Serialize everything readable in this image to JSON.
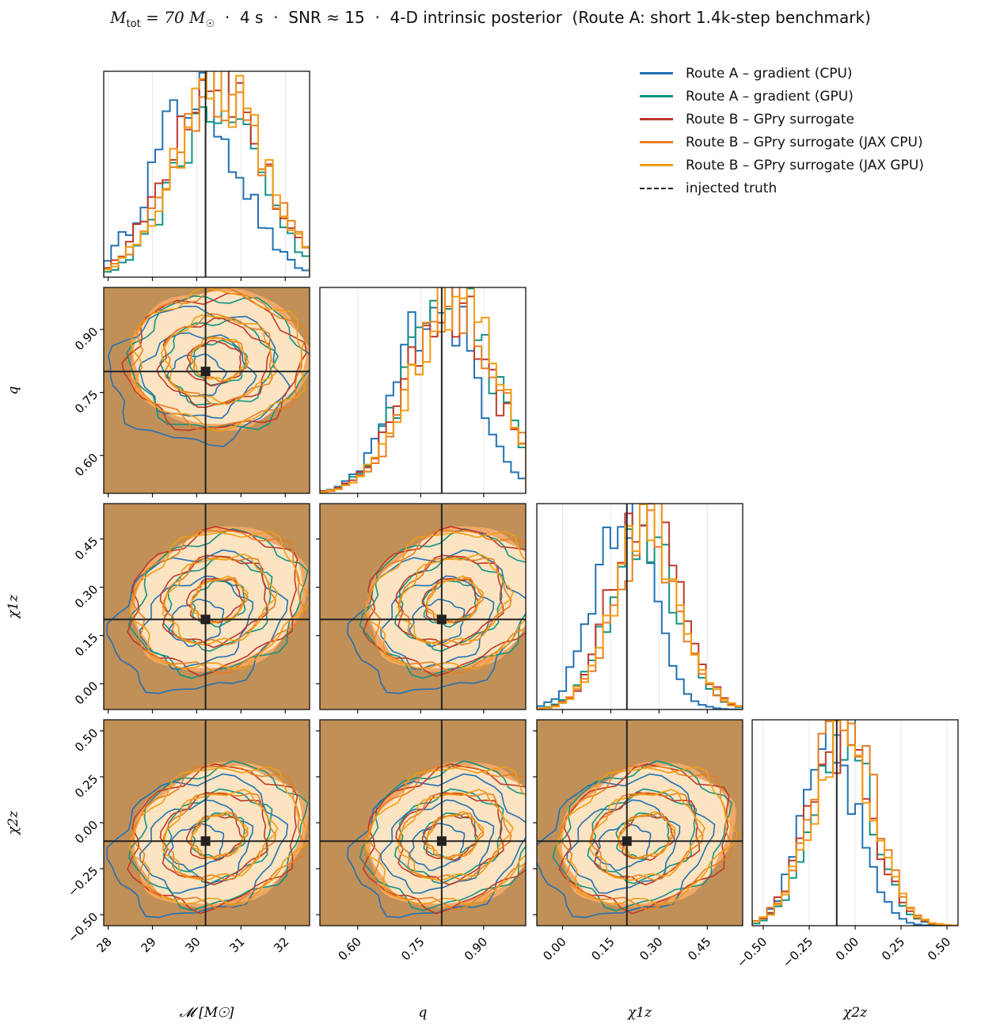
{
  "title": {
    "mass_symbol": "M",
    "mass_sub": "tot",
    "mass_value": " = 70 M",
    "mass_unit_sub": "☉",
    "rest": "  ·  4 s  ·  SNR ≈ 15  ·  4-D intrinsic posterior  (Route A: short 1.4k-step benchmark)"
  },
  "legend": [
    {
      "label": "Route A – gradient (CPU)",
      "color": "#2271b3"
    },
    {
      "label": "Route A – gradient (GPU)",
      "color": "#129283"
    },
    {
      "label": "Route B – GPry surrogate",
      "color": "#c0392b"
    },
    {
      "label": "Route B – GPry surrogate (JAX CPU)",
      "color": "#e67e22"
    },
    {
      "label": "Route B – GPry surrogate (JAX GPU)",
      "color": "#f39c12"
    },
    {
      "label": "injected truth",
      "color": "#222222",
      "dashed": true
    }
  ],
  "colors": {
    "filled_background": "#c09058",
    "filled_region": "#fce3c1",
    "filled_outer": "#f0a868",
    "truth_line": "#222222"
  },
  "chart_data": {
    "type": "corner",
    "params": [
      {
        "name": "chirp_mass",
        "label": "𝓜 [M☉]",
        "range": [
          27.9,
          32.55
        ],
        "ticks": [
          28,
          29,
          30,
          31,
          32
        ],
        "tick_labels": [
          "28",
          "29",
          "30",
          "31",
          "32"
        ],
        "truth": 30.2
      },
      {
        "name": "q",
        "label": "q",
        "range": [
          0.51,
          1.0
        ],
        "ticks": [
          0.6,
          0.75,
          0.9
        ],
        "tick_labels": [
          "0.60",
          "0.75",
          "0.90"
        ],
        "truth": 0.8
      },
      {
        "name": "chi1z",
        "label": "χ1z",
        "range": [
          -0.08,
          0.56
        ],
        "ticks": [
          0.0,
          0.15,
          0.3,
          0.45
        ],
        "tick_labels": [
          "0.00",
          "0.15",
          "0.30",
          "0.45"
        ],
        "truth": 0.2
      },
      {
        "name": "chi2z",
        "label": "χ2z",
        "range": [
          -0.56,
          0.56
        ],
        "ticks": [
          -0.5,
          -0.25,
          0.0,
          0.25,
          0.5
        ],
        "tick_labels": [
          "−0.50",
          "−0.25",
          "0.00",
          "0.25",
          "0.50"
        ],
        "truth": -0.1
      }
    ],
    "series": [
      {
        "name": "Route A – gradient (CPU)",
        "posterior_mean": [
          30.0,
          0.79,
          0.19,
          -0.13
        ],
        "posterior_std": [
          0.95,
          0.09,
          0.09,
          0.15
        ]
      },
      {
        "name": "Route A – gradient (GPU)",
        "posterior_mean": [
          30.5,
          0.82,
          0.25,
          -0.07
        ],
        "posterior_std": [
          0.95,
          0.1,
          0.1,
          0.16
        ]
      },
      {
        "name": "Route B – GPry surrogate",
        "posterior_mean": [
          30.4,
          0.82,
          0.26,
          -0.08
        ],
        "posterior_std": [
          1.0,
          0.1,
          0.1,
          0.17
        ]
      },
      {
        "name": "Route B – GPry surrogate (JAX CPU)",
        "posterior_mean": [
          30.5,
          0.83,
          0.26,
          -0.07
        ],
        "posterior_std": [
          1.0,
          0.1,
          0.1,
          0.17
        ]
      },
      {
        "name": "Route B – GPry surrogate (JAX GPU)",
        "posterior_mean": [
          30.5,
          0.83,
          0.26,
          -0.07
        ],
        "posterior_std": [
          1.0,
          0.1,
          0.1,
          0.17
        ]
      }
    ],
    "grid": true,
    "legend_position": "top-right"
  }
}
